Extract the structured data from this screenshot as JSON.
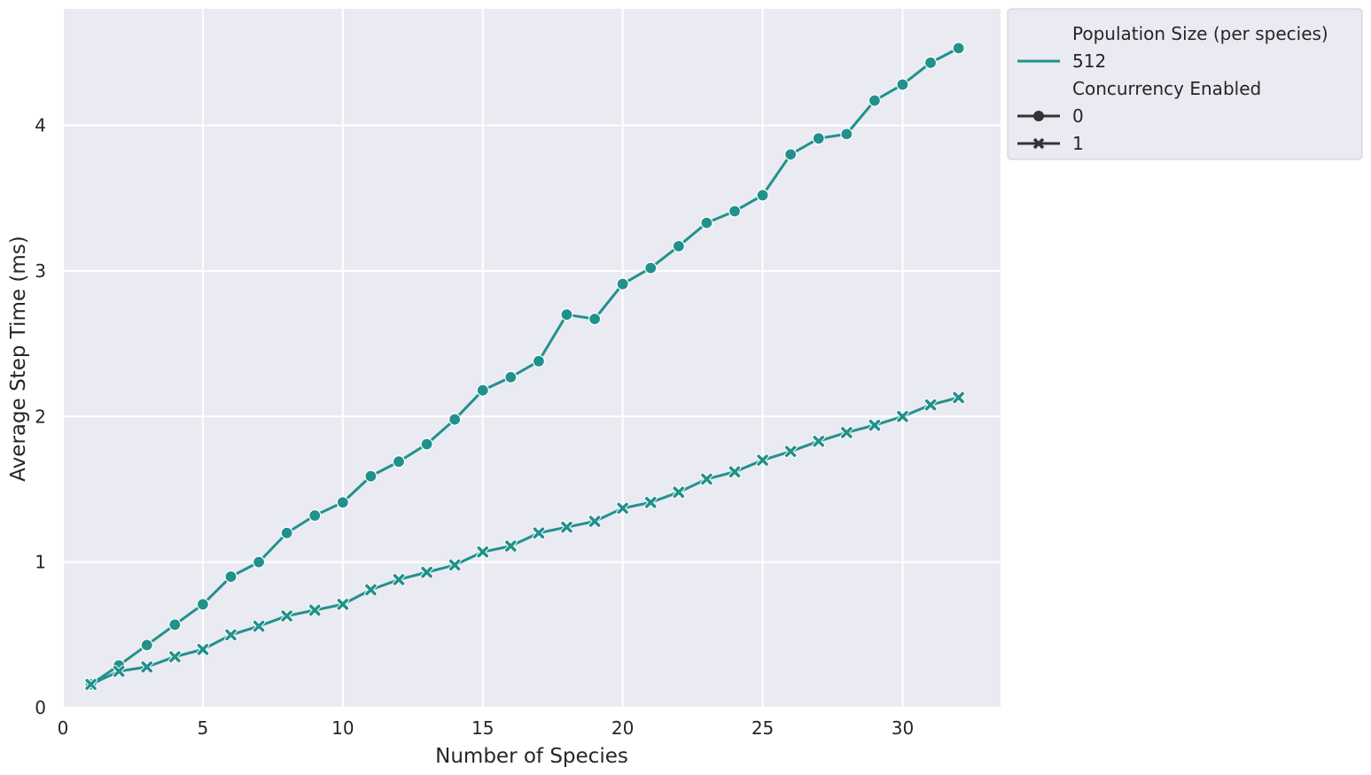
{
  "chart_data": {
    "type": "line",
    "xlabel": "Number of Species",
    "ylabel": "Average Step Time (ms)",
    "xlim": [
      0,
      33.5
    ],
    "ylim": [
      0,
      4.8
    ],
    "xticks": [
      0,
      5,
      10,
      15,
      20,
      25,
      30
    ],
    "yticks": [
      0,
      1,
      2,
      3,
      4
    ],
    "grid": true,
    "legend_placement": "outside-top-right",
    "line_color": "#21918c",
    "legend": {
      "hue_title": "Population Size (per species)",
      "hue_entries": [
        {
          "label": "512",
          "color": "#21918c"
        }
      ],
      "style_title": "Concurrency Enabled",
      "style_entries": [
        {
          "label": "0",
          "marker": "circle"
        },
        {
          "label": "1",
          "marker": "x"
        }
      ]
    },
    "series": [
      {
        "population": "512",
        "concurrency": "0",
        "marker": "circle",
        "x": [
          1,
          2,
          3,
          4,
          5,
          6,
          7,
          8,
          9,
          10,
          11,
          12,
          13,
          14,
          15,
          16,
          17,
          18,
          19,
          20,
          21,
          22,
          23,
          24,
          25,
          26,
          27,
          28,
          29,
          30,
          31,
          32
        ],
        "y": [
          0.16,
          0.29,
          0.43,
          0.57,
          0.71,
          0.9,
          1.0,
          1.2,
          1.32,
          1.41,
          1.59,
          1.69,
          1.81,
          1.98,
          2.18,
          2.27,
          2.38,
          2.7,
          2.67,
          2.91,
          3.02,
          3.17,
          3.33,
          3.41,
          3.52,
          3.8,
          3.91,
          3.94,
          4.17,
          4.28,
          4.43,
          4.53
        ]
      },
      {
        "population": "512",
        "concurrency": "1",
        "marker": "x",
        "x": [
          1,
          2,
          3,
          4,
          5,
          6,
          7,
          8,
          9,
          10,
          11,
          12,
          13,
          14,
          15,
          16,
          17,
          18,
          19,
          20,
          21,
          22,
          23,
          24,
          25,
          26,
          27,
          28,
          29,
          30,
          31,
          32
        ],
        "y": [
          0.16,
          0.25,
          0.28,
          0.35,
          0.4,
          0.5,
          0.56,
          0.63,
          0.67,
          0.71,
          0.81,
          0.88,
          0.93,
          0.98,
          1.07,
          1.11,
          1.2,
          1.24,
          1.28,
          1.37,
          1.41,
          1.48,
          1.57,
          1.62,
          1.7,
          1.76,
          1.83,
          1.89,
          1.94,
          2.0,
          2.08,
          2.13
        ]
      }
    ]
  }
}
